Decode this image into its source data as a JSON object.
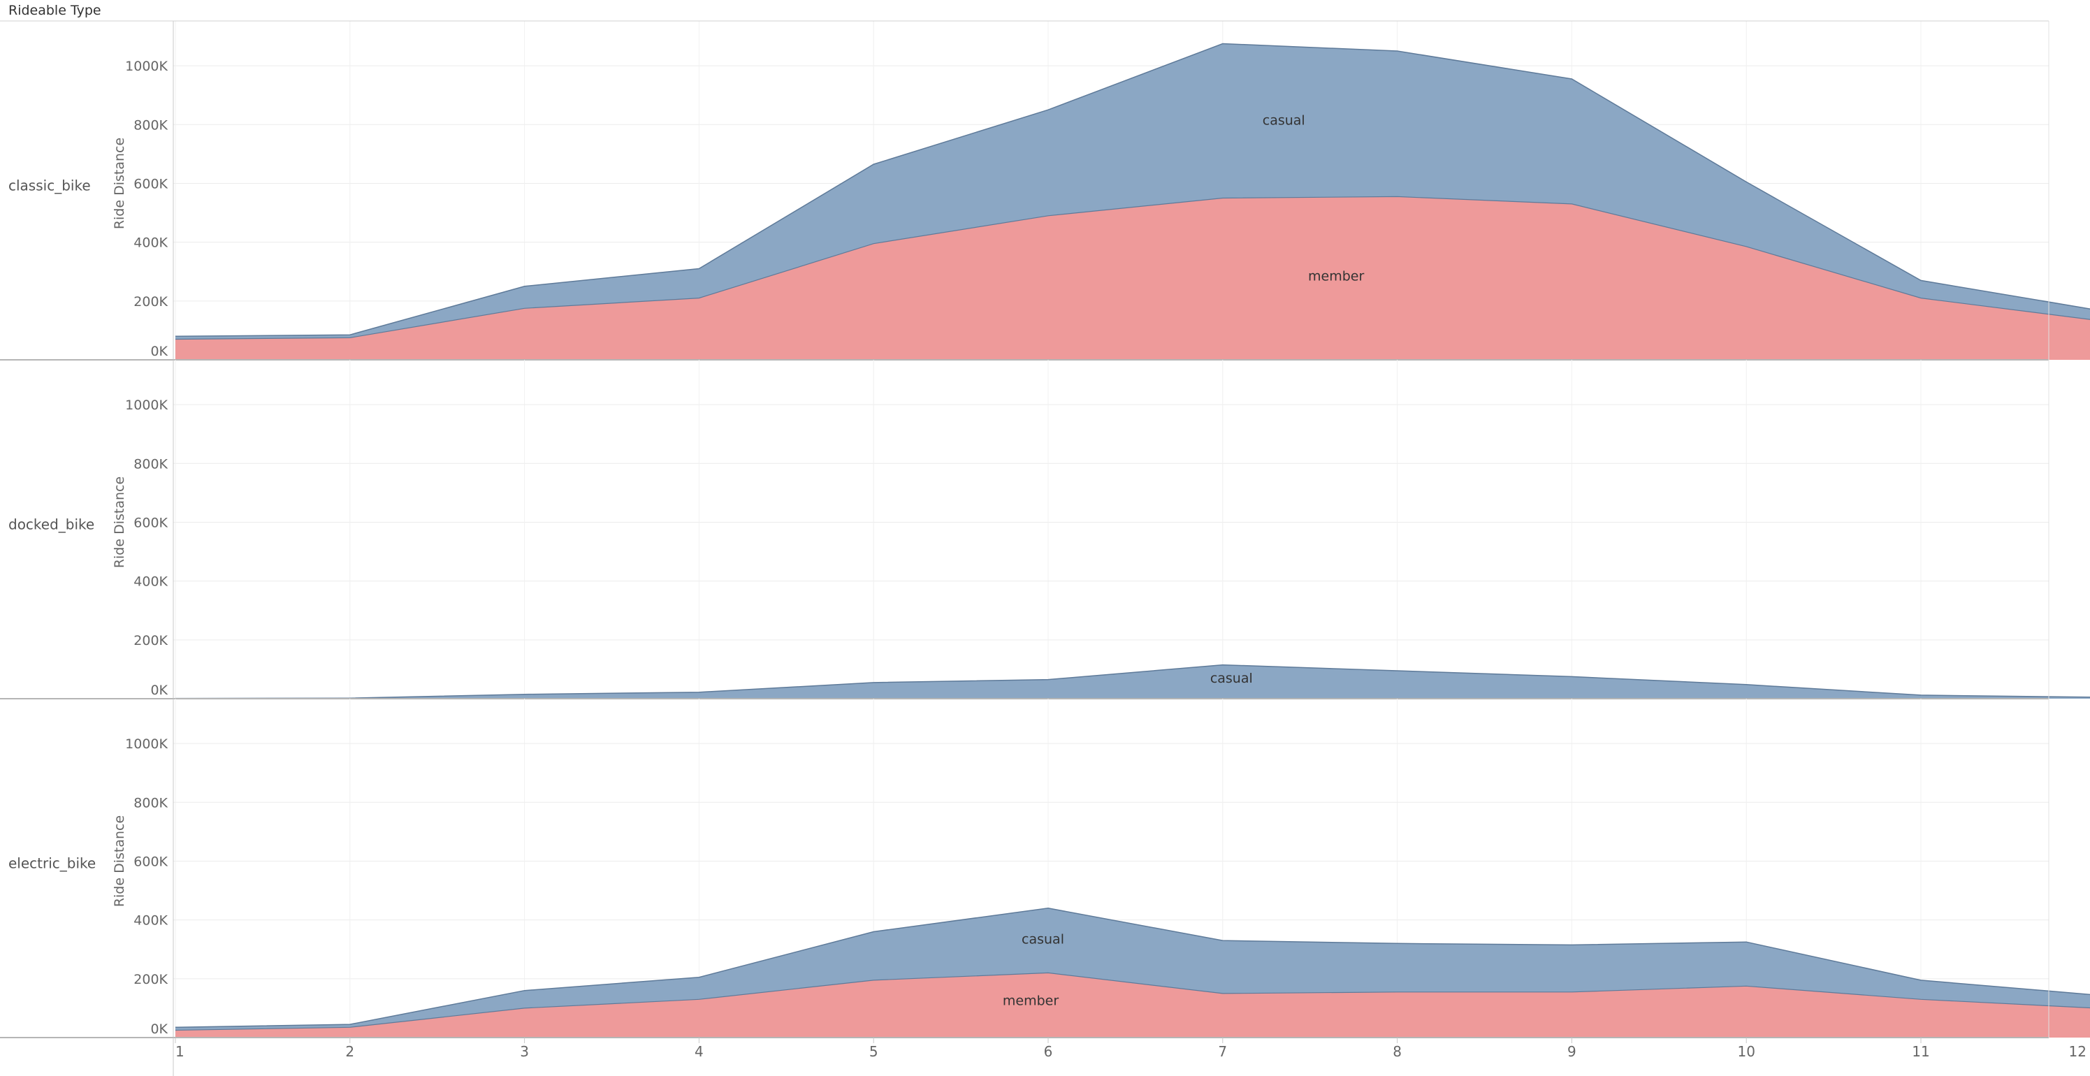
{
  "header": {
    "title": "Rideable Type"
  },
  "chart_data": {
    "type": "area",
    "stacked": true,
    "x": [
      1,
      2,
      3,
      4,
      5,
      6,
      7,
      8,
      9,
      10,
      11,
      12
    ],
    "ylabel": "Ride Distance",
    "ylim": [
      0,
      1100000
    ],
    "y_ticks": [
      "0K",
      "200K",
      "400K",
      "600K",
      "800K",
      "1000K"
    ],
    "y_tick_values": [
      0,
      200000,
      400000,
      600000,
      800000,
      1000000
    ],
    "grid": true,
    "colors": {
      "member": "#EE9A9A",
      "casual": "#8BA7C4",
      "edge": "#5E7A99"
    },
    "panels": [
      {
        "row_label": "classic_bike",
        "series": [
          {
            "name": "member",
            "values": [
              70000,
              75000,
              175000,
              210000,
              395000,
              490000,
              550000,
              555000,
              530000,
              385000,
              210000,
              135000
            ]
          },
          {
            "name": "casual",
            "values": [
              10000,
              10000,
              75000,
              100000,
              270000,
              360000,
              525000,
              495000,
              425000,
              220000,
              60000,
              35000
            ]
          }
        ],
        "labels": [
          {
            "text": "casual",
            "x": 7.35,
            "y": 800000
          },
          {
            "text": "member",
            "x": 7.65,
            "y": 270000
          }
        ]
      },
      {
        "row_label": "docked_bike",
        "series": [
          {
            "name": "member",
            "values": [
              0,
              0,
              0,
              0,
              0,
              0,
              0,
              0,
              0,
              0,
              0,
              0
            ]
          },
          {
            "name": "casual",
            "values": [
              1000,
              2000,
              15000,
              22000,
              55000,
              65000,
              115000,
              95000,
              75000,
              48000,
              12000,
              5000
            ]
          }
        ],
        "labels": [
          {
            "text": "casual",
            "x": 7.05,
            "y": 55000
          }
        ]
      },
      {
        "row_label": "electric_bike",
        "series": [
          {
            "name": "member",
            "values": [
              25000,
              35000,
              100000,
              130000,
              195000,
              220000,
              150000,
              155000,
              155000,
              175000,
              130000,
              100000
            ]
          },
          {
            "name": "casual",
            "values": [
              10000,
              10000,
              60000,
              75000,
              165000,
              220000,
              180000,
              165000,
              160000,
              150000,
              65000,
              45000
            ]
          }
        ],
        "labels": [
          {
            "text": "casual",
            "x": 5.97,
            "y": 320000
          },
          {
            "text": "member",
            "x": 5.9,
            "y": 110000
          }
        ]
      }
    ]
  }
}
